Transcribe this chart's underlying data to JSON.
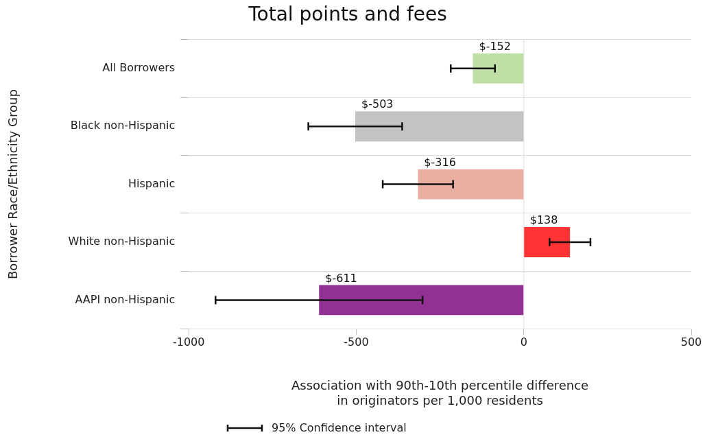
{
  "chart_data": {
    "type": "bar",
    "orientation": "horizontal",
    "title": "Total points and fees",
    "xlabel": "Association with 90th-10th percentile difference\nin originators per 1,000 residents",
    "ylabel": "Borrower Race/Ethnicity Group",
    "categories": [
      "All Borrowers",
      "Black non-Hispanic",
      "Hispanic",
      "White non-Hispanic",
      "AAPI non-Hispanic"
    ],
    "values": [
      -152,
      -503,
      -316,
      138,
      -611
    ],
    "colors": [
      "#c0dfa6",
      "#c2c3c5",
      "#e9afa1",
      "#ff3333",
      "#923194"
    ],
    "errors": [
      66,
      140,
      105,
      61,
      309
    ],
    "value_labels": [
      "$-152",
      "$-503",
      "$-316",
      "$138",
      "$-611"
    ],
    "xlim": [
      -1000,
      500
    ],
    "xticks": [
      -1000,
      -500,
      0,
      500
    ],
    "grid": "y",
    "ref_lines": [
      {
        "axis": "x",
        "value": 0,
        "color": "#dddddd"
      }
    ],
    "annotations": [
      "95% Confidence interval"
    ]
  }
}
